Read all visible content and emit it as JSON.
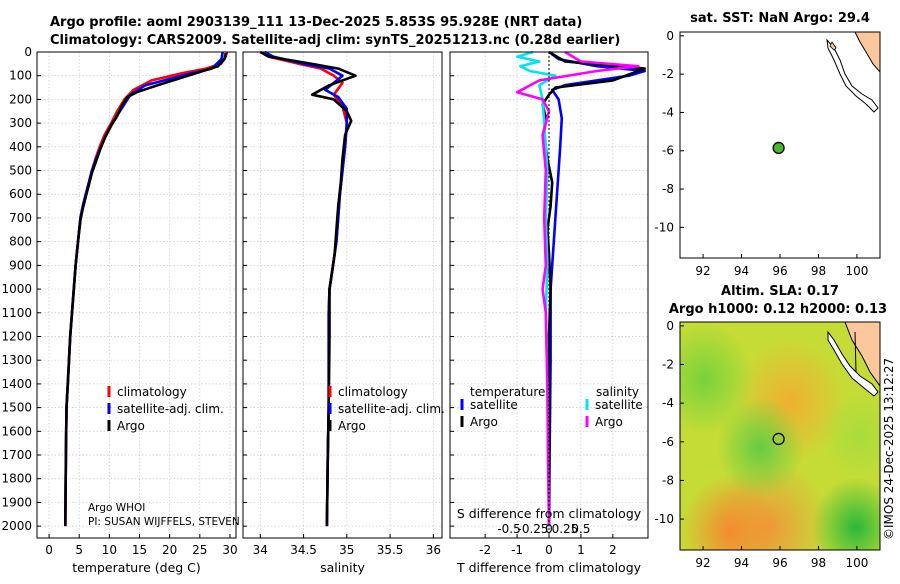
{
  "header": {
    "title1": "Argo profile: aoml 2903139_111 13-Dec-2025 5.853S 95.928E (NRT data)",
    "title2": "Climatology: CARS2009. Satellite-adj clim: synTS_20251213.nc (0.28d earlier)"
  },
  "depth_ticks": [
    "0",
    "100",
    "200",
    "300",
    "400",
    "500",
    "600",
    "700",
    "800",
    "900",
    "1000",
    "1100",
    "1200",
    "1300",
    "1400",
    "1500",
    "1600",
    "1700",
    "1800",
    "1900",
    "2000"
  ],
  "colors": {
    "climatology": "#ff0000",
    "satellite": "#0000ff",
    "argo": "#000000",
    "sat_s": "#00e5ee",
    "argo_s": "#ff00ff",
    "land": "#fcc89b"
  },
  "chart_data": [
    {
      "type": "line",
      "name": "temperature",
      "xlabel": "temperature (deg C)",
      "ylabel": "depth",
      "xlim": [
        -2,
        31
      ],
      "ylim": [
        2050,
        0
      ],
      "xticks": [
        0,
        5,
        10,
        15,
        20,
        25,
        30
      ],
      "xtick_labels": [
        "0",
        "5",
        "10",
        "15",
        "20",
        "25",
        "30"
      ],
      "legend": [
        "climatology",
        "satellite-adj. clim.",
        "Argo"
      ],
      "annotations": [
        "Argo WHOI",
        "PI: SUSAN WIJFFELS, STEVEN"
      ],
      "series": [
        {
          "name": "climatology",
          "color": "#ff0000",
          "x": [
            29.5,
            29.3,
            28.5,
            26,
            22,
            17,
            14,
            12.5,
            11.3,
            10.3,
            9.2,
            8.4,
            7.7,
            7.1,
            6.6,
            6.1,
            5.6,
            5.2,
            4.8,
            4.4,
            4.1,
            3.8,
            3.5,
            3.3,
            3.1,
            2.9,
            2.8,
            2.7
          ],
          "y": [
            0,
            20,
            50,
            70,
            90,
            120,
            160,
            200,
            250,
            300,
            350,
            400,
            450,
            500,
            550,
            600,
            650,
            700,
            800,
            900,
            1000,
            1100,
            1200,
            1300,
            1400,
            1500,
            1700,
            2000
          ]
        },
        {
          "name": "satellite-adj. clim.",
          "color": "#0000ff",
          "x": [
            28.8,
            28.6,
            27,
            22,
            16,
            13.5,
            12.5,
            11.5,
            10.5,
            9.5,
            8.6,
            7.8,
            7.1,
            6.6,
            6.1,
            5.6,
            5.2,
            4.8,
            4.4,
            4.1,
            3.8,
            3.5,
            3.3,
            3.1,
            2.9,
            2.8,
            2.7
          ],
          "y": [
            0,
            30,
            70,
            100,
            140,
            180,
            220,
            260,
            300,
            350,
            400,
            450,
            500,
            550,
            600,
            650,
            700,
            800,
            900,
            1000,
            1100,
            1200,
            1300,
            1400,
            1500,
            1700,
            2000
          ]
        },
        {
          "name": "Argo",
          "color": "#000000",
          "x": [
            29.3,
            29.1,
            28,
            23,
            18,
            14.5,
            13,
            12,
            11.3,
            10.3,
            9.3,
            8.5,
            7.8,
            7.1,
            6.6,
            6.1,
            5.6,
            5.2,
            4.8,
            4.4,
            4.1,
            3.8,
            3.5,
            3.3,
            3.1,
            2.9,
            2.8,
            2.7
          ],
          "y": [
            5,
            30,
            60,
            100,
            140,
            170,
            190,
            230,
            270,
            310,
            360,
            410,
            460,
            510,
            560,
            610,
            660,
            710,
            800,
            900,
            1000,
            1100,
            1200,
            1300,
            1400,
            1500,
            1700,
            2000
          ]
        }
      ]
    },
    {
      "type": "line",
      "name": "salinity",
      "xlabel": "salinity",
      "ylabel": "depth",
      "xlim": [
        33.8,
        36.1
      ],
      "ylim": [
        2050,
        0
      ],
      "xticks": [
        34,
        34.5,
        35,
        35.5,
        36
      ],
      "xtick_labels": [
        "34",
        "34.5",
        "35",
        "35.5",
        "36"
      ],
      "legend": [
        "climatology",
        "satellite-adj. clim.",
        "Argo"
      ],
      "series": [
        {
          "name": "climatology",
          "color": "#ff0000",
          "x": [
            34.0,
            34.1,
            34.45,
            34.7,
            34.85,
            34.95,
            34.85,
            34.95,
            35.0,
            34.98,
            34.95,
            34.92,
            34.9,
            34.88,
            34.86,
            34.84,
            34.82,
            34.8,
            34.79,
            34.79,
            34.79,
            34.78,
            34.77
          ],
          "y": [
            0,
            20,
            50,
            70,
            100,
            130,
            180,
            230,
            300,
            400,
            500,
            600,
            700,
            800,
            850,
            900,
            950,
            1000,
            1100,
            1300,
            1500,
            1700,
            2000
          ]
        },
        {
          "name": "satellite-adj. clim.",
          "color": "#0000ff",
          "x": [
            34.05,
            34.15,
            34.5,
            34.8,
            34.95,
            34.75,
            34.9,
            35.0,
            35.0,
            34.98,
            34.95,
            34.92,
            34.9,
            34.88,
            34.86,
            34.84,
            34.82,
            34.8,
            34.79,
            34.79,
            34.79,
            34.78,
            34.77
          ],
          "y": [
            0,
            20,
            50,
            70,
            100,
            160,
            190,
            240,
            300,
            400,
            500,
            600,
            700,
            800,
            850,
            900,
            950,
            1000,
            1100,
            1300,
            1500,
            1700,
            2000
          ]
        },
        {
          "name": "Argo",
          "color": "#000000",
          "x": [
            34.0,
            34.1,
            34.6,
            34.9,
            35.1,
            34.8,
            34.6,
            34.85,
            35.0,
            35.05,
            34.98,
            34.95,
            34.93,
            34.9,
            34.88,
            34.86,
            34.84,
            34.82,
            34.8,
            34.8,
            34.79,
            34.78,
            34.77
          ],
          "y": [
            0,
            20,
            50,
            70,
            100,
            140,
            180,
            200,
            250,
            290,
            350,
            450,
            550,
            650,
            750,
            850,
            900,
            950,
            1000,
            1200,
            1500,
            1700,
            2000
          ]
        }
      ]
    },
    {
      "type": "line",
      "name": "differences",
      "xlabel": "T difference from climatology",
      "xlabel_top": "S difference from climatology",
      "ylabel": "depth",
      "xlim": [
        -3.1,
        3.1
      ],
      "ylim": [
        2050,
        0
      ],
      "xticks": [
        -2,
        -1,
        0,
        1,
        2
      ],
      "xtick_labels": [
        "-2",
        "-1",
        "0",
        "1",
        "2"
      ],
      "sticks": [
        -1,
        -0.5,
        0,
        0.5,
        1
      ],
      "stick_labels": [
        "-0.5",
        "-0.25",
        "0",
        "0.25",
        "0.5"
      ],
      "legend_temperature_title": "temperature",
      "legend_salinity_title": "salinity",
      "legend": [
        "satellite",
        "Argo",
        "satellite",
        "Argo"
      ],
      "series": [
        {
          "name": "satellite T",
          "color": "#0000ff",
          "x": [
            0,
            0.3,
            1.5,
            3.0,
            2.5,
            0.5,
            0.1,
            0.3,
            0.4,
            0.35,
            0.3,
            0.25,
            0.2,
            0.15,
            0.1,
            0.05,
            0.05,
            0.02,
            0.0
          ],
          "y": [
            0,
            30,
            60,
            80,
            100,
            140,
            160,
            200,
            280,
            400,
            500,
            600,
            700,
            800,
            900,
            1000,
            1300,
            1700,
            2000
          ]
        },
        {
          "name": "Argo T",
          "color": "#000000",
          "x": [
            0,
            0.5,
            3.0,
            2.0,
            0.2,
            0.0,
            -0.2,
            -0.1,
            -0.15,
            -0.05,
            0.1,
            0.05,
            -0.05,
            0.0,
            0.05,
            0.0,
            0.02,
            0.0,
            0.0
          ],
          "y": [
            0,
            40,
            70,
            120,
            150,
            180,
            220,
            280,
            350,
            450,
            550,
            650,
            750,
            850,
            1000,
            1200,
            1500,
            1800,
            2000
          ]
        },
        {
          "name": "satellite S",
          "color": "#00e5ee",
          "x": [
            -0.5,
            -1.0,
            -0.3,
            -0.9,
            -0.6,
            0.2,
            -0.3,
            -0.2,
            -0.15,
            -0.1,
            -0.05,
            -0.1,
            -0.05,
            -0.1,
            -0.05,
            -0.03,
            0.0
          ],
          "y": [
            0,
            20,
            40,
            60,
            80,
            100,
            140,
            200,
            300,
            400,
            500,
            700,
            900,
            1100,
            1400,
            1700,
            2000
          ]
        },
        {
          "name": "Argo S",
          "color": "#ff00ff",
          "x": [
            0.5,
            1.0,
            2.8,
            1.5,
            -0.3,
            -1.0,
            -0.2,
            0.0,
            -0.2,
            -0.1,
            -0.15,
            -0.1,
            -0.2,
            -0.1,
            -0.05,
            -0.03,
            0.0
          ],
          "y": [
            0,
            40,
            60,
            80,
            120,
            170,
            200,
            250,
            350,
            500,
            700,
            900,
            1000,
            1100,
            1400,
            1700,
            2000
          ]
        }
      ]
    },
    {
      "type": "scatter",
      "name": "sst_map",
      "title": "sat. SST: NaN Argo: 29.4",
      "xlim": [
        90.8,
        101.2
      ],
      "ylim": [
        -11.6,
        0.2
      ],
      "xticks": [
        92,
        94,
        96,
        98,
        100
      ],
      "yticks": [
        0,
        -2,
        -4,
        -6,
        -8,
        -10
      ],
      "points": [
        {
          "lon": 95.928,
          "lat": -5.853,
          "color": "#44bb22"
        }
      ]
    },
    {
      "type": "heatmap",
      "name": "sla_map",
      "title": "Altim. SLA: 0.17",
      "title2": "Argo h1000: 0.12 h2000: 0.13",
      "xlim": [
        90.8,
        101.2
      ],
      "ylim": [
        -11.6,
        0.2
      ],
      "xticks": [
        92,
        94,
        96,
        98,
        100
      ],
      "yticks": [
        0,
        -2,
        -4,
        -6,
        -8,
        -10
      ],
      "points": [
        {
          "lon": 95.928,
          "lat": -5.853
        }
      ]
    }
  ],
  "footer": {
    "credit": "©IMOS 24-Dec-2025 13:12:27"
  }
}
